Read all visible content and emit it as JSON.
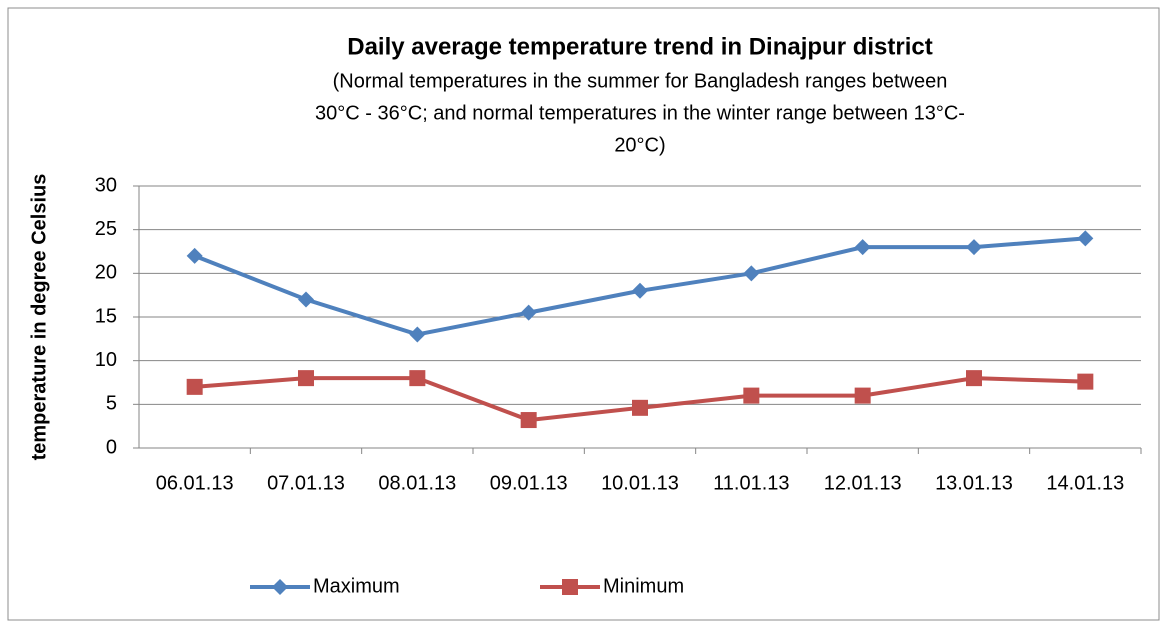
{
  "chart_data": {
    "type": "line",
    "title": "Daily average temperature trend in Dinajpur district",
    "subtitle": [
      "(Normal temperatures in the summer for Bangladesh ranges between",
      "30°C - 36°C; and normal temperatures in the winter range between 13°C-",
      "20°C)"
    ],
    "y_label": "temperature in degree Celsius",
    "categories": [
      "06.01.13",
      "07.01.13",
      "08.01.13",
      "09.01.13",
      "10.01.13",
      "11.01.13",
      "12.01.13",
      "13.01.13",
      "14.01.13"
    ],
    "series": [
      {
        "name": "Maximum",
        "color": "#4f81bd",
        "marker": "diamond",
        "values": [
          22,
          17,
          13,
          15.5,
          18,
          20,
          23,
          23,
          24
        ]
      },
      {
        "name": "Minimum",
        "color": "#c0504d",
        "marker": "square",
        "values": [
          7,
          8,
          8,
          3.2,
          4.6,
          6,
          6,
          8,
          7.6
        ]
      }
    ],
    "ylim": [
      0,
      30
    ],
    "yticks": [
      0,
      5,
      10,
      15,
      20,
      25,
      30
    ],
    "grid": true,
    "legend": "bottom"
  }
}
